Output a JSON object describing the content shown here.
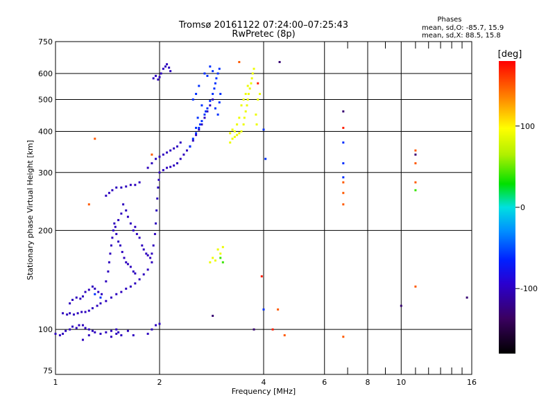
{
  "header": {
    "title": "Tromsø 20161122 07:24:00–07:25:43",
    "subtitle": "RwPretec (8p)"
  },
  "phase_info": {
    "heading": "Phases",
    "line_o": "mean, sd,O: -85.7, 15.9",
    "line_x": "mean, sd,X:  88.5, 15.8"
  },
  "colorbar": {
    "unit": "[deg]",
    "range": [
      -180,
      180
    ],
    "ticks": [
      100,
      0,
      -100
    ]
  },
  "chart_data": {
    "type": "scatter",
    "title": "Tromsø 20161122 07:24:00–07:25:43",
    "subtitle": "RwPretec (8p)",
    "xlabel": "Frequency [MHz]",
    "ylabel": "Stationary phase Virtual Height [km]",
    "xscale": "log",
    "yscale": "log",
    "xlim": [
      1,
      16
    ],
    "ylim": [
      73,
      750
    ],
    "xticks": [
      1,
      2,
      4,
      6,
      8,
      10,
      16
    ],
    "yticks": [
      75,
      100,
      200,
      300,
      400,
      500,
      600,
      750
    ],
    "x_grid_major": [
      1,
      2,
      4,
      6,
      8,
      10,
      16
    ],
    "x_grid_minor": [
      7,
      9,
      11,
      12,
      13,
      14,
      15
    ],
    "y_grid": [
      100,
      200,
      300,
      400,
      500,
      600
    ],
    "colorbar_label": "[deg]",
    "series": [
      {
        "color_phase": -100,
        "points": [
          [
            1.0,
            97
          ],
          [
            1.03,
            96
          ],
          [
            1.05,
            97
          ],
          [
            1.07,
            99
          ],
          [
            1.1,
            100
          ],
          [
            1.12,
            102
          ],
          [
            1.15,
            101
          ],
          [
            1.17,
            103
          ],
          [
            1.2,
            103
          ],
          [
            1.22,
            101
          ],
          [
            1.25,
            100
          ],
          [
            1.28,
            99
          ],
          [
            1.3,
            98
          ],
          [
            1.35,
            97
          ],
          [
            1.4,
            98
          ],
          [
            1.45,
            99
          ],
          [
            1.5,
            100
          ],
          [
            1.52,
            98
          ],
          [
            1.05,
            112
          ],
          [
            1.08,
            111
          ],
          [
            1.1,
            112
          ],
          [
            1.13,
            111
          ],
          [
            1.16,
            112
          ],
          [
            1.19,
            113
          ],
          [
            1.22,
            113
          ],
          [
            1.25,
            114
          ],
          [
            1.28,
            116
          ],
          [
            1.32,
            118
          ],
          [
            1.35,
            120
          ],
          [
            1.4,
            122
          ],
          [
            1.45,
            125
          ],
          [
            1.5,
            128
          ],
          [
            1.55,
            130
          ],
          [
            1.6,
            133
          ],
          [
            1.65,
            135
          ],
          [
            1.7,
            138
          ],
          [
            1.75,
            142
          ],
          [
            1.8,
            147
          ],
          [
            1.85,
            152
          ],
          [
            1.9,
            160
          ],
          [
            1.1,
            120
          ],
          [
            1.12,
            123
          ],
          [
            1.15,
            125
          ],
          [
            1.18,
            124
          ],
          [
            1.2,
            126
          ],
          [
            1.22,
            130
          ],
          [
            1.25,
            132
          ],
          [
            1.28,
            135
          ],
          [
            1.3,
            133
          ],
          [
            1.33,
            130
          ],
          [
            1.36,
            128
          ],
          [
            1.4,
            140
          ],
          [
            1.42,
            150
          ],
          [
            1.43,
            160
          ],
          [
            1.44,
            170
          ],
          [
            1.45,
            180
          ],
          [
            1.46,
            190
          ],
          [
            1.47,
            200
          ],
          [
            1.48,
            210
          ],
          [
            1.49,
            205
          ],
          [
            1.5,
            195
          ],
          [
            1.52,
            185
          ],
          [
            1.54,
            180
          ],
          [
            1.56,
            172
          ],
          [
            1.58,
            165
          ],
          [
            1.6,
            160
          ],
          [
            1.62,
            158
          ],
          [
            1.65,
            155
          ],
          [
            1.68,
            150
          ],
          [
            1.7,
            148
          ],
          [
            1.52,
            215
          ],
          [
            1.55,
            225
          ],
          [
            1.57,
            240
          ],
          [
            1.6,
            230
          ],
          [
            1.62,
            220
          ],
          [
            1.65,
            210
          ],
          [
            1.68,
            200
          ],
          [
            1.7,
            205
          ],
          [
            1.72,
            195
          ],
          [
            1.75,
            190
          ],
          [
            1.78,
            180
          ],
          [
            1.8,
            175
          ],
          [
            1.83,
            170
          ],
          [
            1.85,
            168
          ],
          [
            1.88,
            165
          ],
          [
            1.9,
            170
          ],
          [
            1.92,
            180
          ],
          [
            1.94,
            195
          ],
          [
            1.95,
            210
          ],
          [
            1.96,
            230
          ],
          [
            1.97,
            250
          ],
          [
            1.98,
            270
          ],
          [
            1.99,
            285
          ],
          [
            1.4,
            255
          ],
          [
            1.43,
            260
          ],
          [
            1.46,
            265
          ],
          [
            1.5,
            270
          ],
          [
            1.55,
            270
          ],
          [
            1.6,
            272
          ],
          [
            1.65,
            275
          ],
          [
            1.7,
            275
          ],
          [
            1.75,
            280
          ],
          [
            1.85,
            310
          ],
          [
            1.9,
            320
          ],
          [
            1.95,
            330
          ],
          [
            2.0,
            335
          ],
          [
            2.05,
            340
          ],
          [
            2.1,
            345
          ],
          [
            2.15,
            350
          ],
          [
            2.2,
            355
          ],
          [
            2.25,
            360
          ],
          [
            2.3,
            370
          ],
          [
            2.0,
            300
          ],
          [
            2.05,
            305
          ],
          [
            2.1,
            310
          ],
          [
            2.15,
            312
          ],
          [
            2.2,
            315
          ],
          [
            2.25,
            320
          ],
          [
            2.3,
            330
          ],
          [
            2.35,
            340
          ],
          [
            2.4,
            350
          ],
          [
            2.45,
            360
          ],
          [
            2.5,
            375
          ],
          [
            2.55,
            390
          ],
          [
            2.6,
            405
          ],
          [
            2.65,
            420
          ],
          [
            2.7,
            440
          ],
          [
            2.75,
            460
          ],
          [
            2.8,
            480
          ],
          [
            2.85,
            500
          ],
          [
            1.92,
            580
          ],
          [
            1.95,
            590
          ],
          [
            1.98,
            575
          ],
          [
            2.0,
            585
          ],
          [
            2.02,
            600
          ],
          [
            2.05,
            620
          ],
          [
            2.08,
            630
          ],
          [
            2.1,
            640
          ],
          [
            2.13,
            625
          ],
          [
            2.15,
            610
          ],
          [
            1.85,
            97
          ],
          [
            1.9,
            100
          ],
          [
            1.95,
            103
          ],
          [
            2.0,
            104
          ],
          [
            1.45,
            95
          ],
          [
            1.5,
            97
          ],
          [
            1.55,
            96
          ],
          [
            1.62,
            99
          ],
          [
            1.68,
            96
          ],
          [
            1.2,
            93
          ],
          [
            1.25,
            96
          ]
        ]
      },
      {
        "color_phase": -60,
        "points": [
          [
            2.45,
            360
          ],
          [
            2.5,
            380
          ],
          [
            2.55,
            395
          ],
          [
            2.6,
            410
          ],
          [
            2.65,
            430
          ],
          [
            2.7,
            450
          ],
          [
            2.75,
            470
          ],
          [
            2.8,
            495
          ],
          [
            2.85,
            520
          ],
          [
            2.88,
            540
          ],
          [
            2.9,
            560
          ],
          [
            2.92,
            580
          ],
          [
            2.95,
            600
          ],
          [
            2.98,
            620
          ],
          [
            2.8,
            630
          ],
          [
            2.85,
            610
          ],
          [
            2.7,
            600
          ],
          [
            2.75,
            590
          ],
          [
            2.6,
            550
          ],
          [
            2.55,
            520
          ],
          [
            2.5,
            500
          ],
          [
            2.65,
            480
          ],
          [
            2.72,
            460
          ],
          [
            2.58,
            440
          ],
          [
            2.62,
            420
          ],
          [
            2.55,
            410
          ],
          [
            2.9,
            470
          ],
          [
            2.95,
            450
          ],
          [
            3.0,
            520
          ],
          [
            2.98,
            490
          ],
          [
            1.3,
            128
          ],
          [
            1.35,
            125
          ],
          [
            4.0,
            405
          ],
          [
            4.05,
            330
          ],
          [
            4.0,
            115
          ],
          [
            6.8,
            370
          ],
          [
            6.8,
            320
          ],
          [
            6.8,
            290
          ]
        ]
      },
      {
        "color_phase": 90,
        "points": [
          [
            3.2,
            370
          ],
          [
            3.25,
            380
          ],
          [
            3.3,
            385
          ],
          [
            3.35,
            390
          ],
          [
            3.4,
            395
          ],
          [
            3.45,
            400
          ],
          [
            3.5,
            420
          ],
          [
            3.52,
            440
          ],
          [
            3.55,
            460
          ],
          [
            3.58,
            480
          ],
          [
            3.6,
            500
          ],
          [
            3.62,
            520
          ],
          [
            3.65,
            540
          ],
          [
            3.68,
            560
          ],
          [
            3.7,
            580
          ],
          [
            3.72,
            600
          ],
          [
            3.75,
            620
          ],
          [
            3.45,
            480
          ],
          [
            3.5,
            500
          ],
          [
            3.4,
            440
          ],
          [
            3.35,
            420
          ],
          [
            3.3,
            400
          ],
          [
            3.55,
            520
          ],
          [
            3.6,
            550
          ],
          [
            3.8,
            450
          ],
          [
            3.85,
            500
          ],
          [
            3.9,
            520
          ],
          [
            3.82,
            420
          ],
          [
            3.25,
            405
          ],
          [
            3.2,
            395
          ],
          [
            2.95,
            175
          ],
          [
            3.0,
            170
          ],
          [
            3.05,
            178
          ],
          [
            2.85,
            165
          ],
          [
            2.9,
            162
          ],
          [
            2.8,
            160
          ]
        ]
      },
      {
        "color_phase": 150,
        "points": [
          [
            1.25,
            240
          ],
          [
            1.3,
            380
          ],
          [
            1.9,
            340
          ],
          [
            3.4,
            650
          ],
          [
            4.4,
            115
          ],
          [
            4.6,
            96
          ],
          [
            6.8,
            95
          ],
          [
            6.8,
            240
          ],
          [
            6.8,
            260
          ],
          [
            6.8,
            280
          ],
          [
            11.0,
            350
          ],
          [
            11.0,
            280
          ],
          [
            11.0,
            320
          ],
          [
            11.0,
            135
          ]
        ]
      },
      {
        "color_phase": 170,
        "points": [
          [
            3.85,
            560
          ],
          [
            4.25,
            100
          ],
          [
            6.8,
            410
          ],
          [
            3.95,
            145
          ]
        ]
      },
      {
        "color_phase": 40,
        "points": [
          [
            3.0,
            165
          ],
          [
            3.05,
            160
          ],
          [
            11.0,
            265
          ]
        ]
      },
      {
        "color_phase": -130,
        "points": [
          [
            6.8,
            460
          ],
          [
            11.0,
            340
          ],
          [
            10.0,
            118
          ],
          [
            15.5,
            125
          ],
          [
            4.45,
            650
          ],
          [
            2.85,
            110
          ],
          [
            3.75,
            100
          ]
        ]
      }
    ]
  }
}
